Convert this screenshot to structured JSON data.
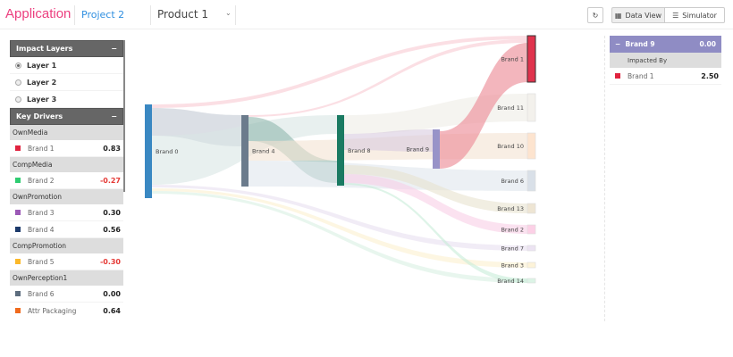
{
  "header": {
    "app_title": "Application",
    "project": "Project 2",
    "product": "Product 1",
    "data_view": "Data View",
    "simulator": "Simulator"
  },
  "impact_layers": {
    "title": "Impact Layers",
    "collapse": "−",
    "layers": [
      {
        "label": "Layer 1",
        "selected": true
      },
      {
        "label": "Layer 2",
        "selected": false
      },
      {
        "label": "Layer 3",
        "selected": false
      }
    ]
  },
  "key_drivers": {
    "title": "Key Drivers",
    "collapse": "−",
    "groups": [
      {
        "name": "OwnMedia",
        "items": [
          {
            "label": "Brand 1",
            "value": "0.83",
            "color": "#e0233f"
          }
        ]
      },
      {
        "name": "CompMedia",
        "items": [
          {
            "label": "Brand 2",
            "value": "-0.27",
            "color": "#2ecc71"
          }
        ]
      },
      {
        "name": "OwnPromotion",
        "items": [
          {
            "label": "Brand 3",
            "value": "0.30",
            "color": "#9b59b6"
          },
          {
            "label": "Brand 4",
            "value": "0.56",
            "color": "#1c3a6b"
          }
        ]
      },
      {
        "name": "CompPromotion",
        "items": [
          {
            "label": "Brand 5",
            "value": "-0.30",
            "color": "#fbb829"
          }
        ]
      },
      {
        "name": "OwnPerception1",
        "items": [
          {
            "label": "Brand 6",
            "value": "0.00",
            "color": "#5d6d7e"
          },
          {
            "label": "Attr Packaging",
            "value": "0.64",
            "color": "#f06a1d"
          }
        ]
      }
    ]
  },
  "detail": {
    "node": "Brand 9",
    "collapse": "−",
    "value": "0.00",
    "section": "Impacted By",
    "items": [
      {
        "label": "Brand 1",
        "value": "2.50",
        "color": "#e0233f"
      }
    ]
  },
  "chart_data": {
    "type": "sankey",
    "nodes": [
      {
        "name": "Brand 0",
        "color": "#3a88c2"
      },
      {
        "name": "Brand 4",
        "color": "#6b7b8c"
      },
      {
        "name": "Brand 8",
        "color": "#1a7a62"
      },
      {
        "name": "Brand 9",
        "color": "#9893c8"
      },
      {
        "name": "Brand 1",
        "color": "#e0334d"
      },
      {
        "name": "Brand 11",
        "color": "#f3f1ec"
      },
      {
        "name": "Brand 10",
        "color": "#fde4cf"
      },
      {
        "name": "Brand 6",
        "color": "#d9e0e8"
      },
      {
        "name": "Brand 13",
        "color": "#eee5d3"
      },
      {
        "name": "Brand 2",
        "color": "#fcd0e6"
      },
      {
        "name": "Brand 7",
        "color": "#ece3f2"
      },
      {
        "name": "Brand 3",
        "color": "#fdf3d8"
      },
      {
        "name": "Brand 14",
        "color": "#dcf4e6"
      }
    ],
    "links": [
      {
        "source": "Brand 0",
        "target": "Brand 1"
      },
      {
        "source": "Brand 0",
        "target": "Brand 4"
      },
      {
        "source": "Brand 0",
        "target": "Brand 8"
      },
      {
        "source": "Brand 0",
        "target": "Brand 7"
      },
      {
        "source": "Brand 0",
        "target": "Brand 3"
      },
      {
        "source": "Brand 0",
        "target": "Brand 14"
      },
      {
        "source": "Brand 4",
        "target": "Brand 1"
      },
      {
        "source": "Brand 4",
        "target": "Brand 8"
      },
      {
        "source": "Brand 4",
        "target": "Brand 10"
      },
      {
        "source": "Brand 4",
        "target": "Brand 6"
      },
      {
        "source": "Brand 8",
        "target": "Brand 11"
      },
      {
        "source": "Brand 8",
        "target": "Brand 9"
      },
      {
        "source": "Brand 8",
        "target": "Brand 13"
      },
      {
        "source": "Brand 8",
        "target": "Brand 2"
      },
      {
        "source": "Brand 8",
        "target": "Brand 14"
      },
      {
        "source": "Brand 9",
        "target": "Brand 1"
      }
    ]
  }
}
